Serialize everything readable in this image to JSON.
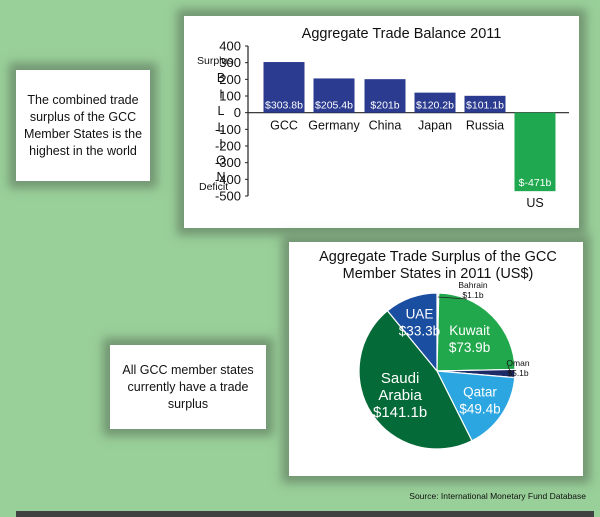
{
  "callouts": {
    "top": "The combined trade surplus of the GCC Member States is the highest in the world",
    "bottom": "All GCC member states currently have a trade surplus"
  },
  "source": "Source: International Monetary Fund Database",
  "colors": {
    "background": "#99cf99",
    "bar_surplus": "#2b3b8f",
    "bar_deficit": "#1fa84f",
    "pie_saudi": "#046a38",
    "pie_uae": "#1a4ea0",
    "pie_kuwait": "#22a84c",
    "pie_qatar": "#2ba6e0",
    "pie_oman": "#1c2a66"
  },
  "chart_data": [
    {
      "type": "bar",
      "title": "Aggregate Trade Balance 2011",
      "ylabel": "BILLION",
      "surplus_label": "Surplus",
      "deficit_label": "Deficit",
      "ylim": [
        -500,
        400
      ],
      "yticks": [
        "400",
        "300",
        "200",
        "100",
        "0",
        "-100",
        "-200",
        "-300",
        "-400",
        "-500"
      ],
      "categories": [
        "GCC",
        "Germany",
        "China",
        "Japan",
        "Russia",
        "US"
      ],
      "values": [
        303.8,
        205.4,
        201,
        120.2,
        101.1,
        -471
      ],
      "data_labels": [
        "$303.8b",
        "$205.4b",
        "$201b",
        "$120.2b",
        "$101.1b",
        "$-471b"
      ]
    },
    {
      "type": "pie",
      "title": "Aggregate Trade Surplus of the GCC Member States in 2011 (US$)",
      "categories": [
        "Bahrain",
        "Kuwait",
        "Oman",
        "Qatar",
        "Saudi Arabia",
        "UAE"
      ],
      "values": [
        1.1,
        73.9,
        5.1,
        49.4,
        141.1,
        33.3
      ],
      "data_labels": [
        "$1.1b",
        "$73.9b",
        "$5.1b",
        "$49.4b",
        "$141.1b",
        "$33.3b"
      ]
    }
  ]
}
